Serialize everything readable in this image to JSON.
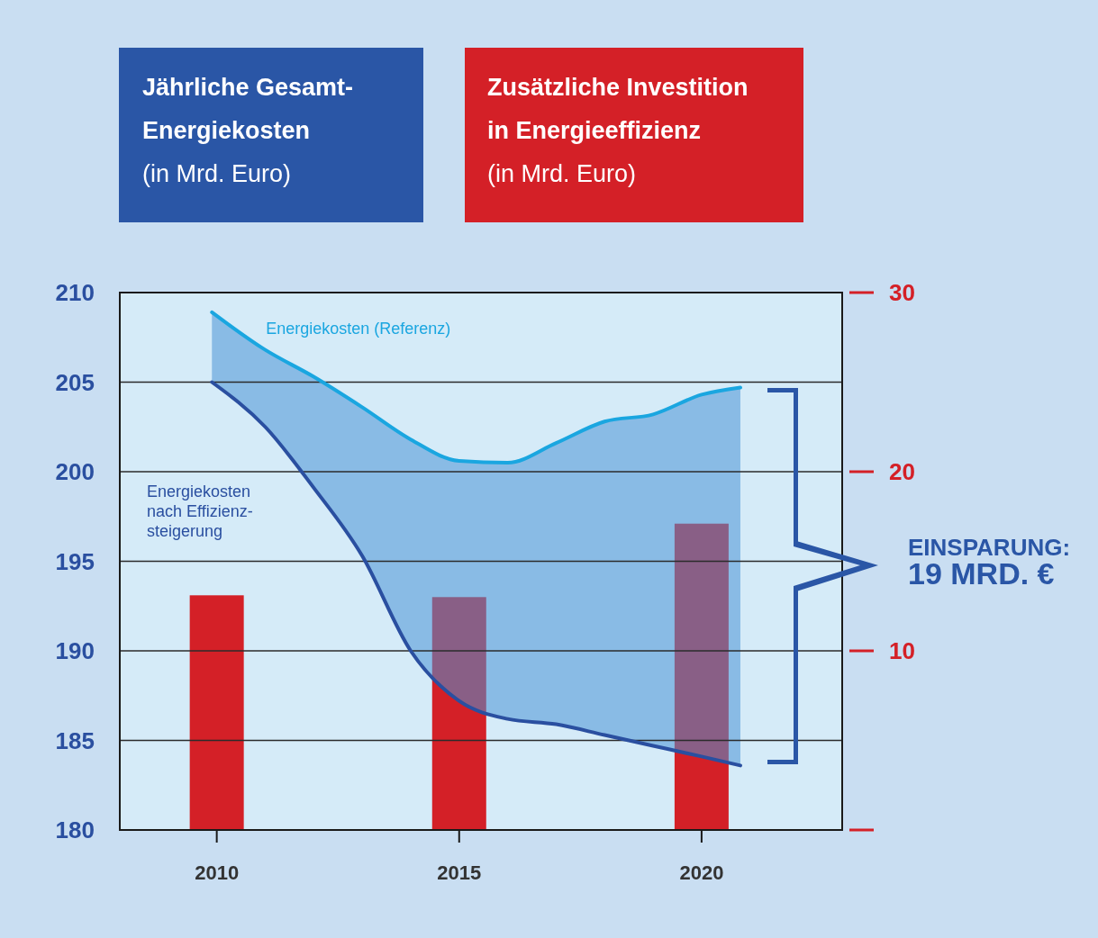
{
  "chart_data": {
    "type": "line",
    "ylabel": "Jährliche Gesamt-Energiekosten (in Mrd. Euro)",
    "y2label": "Zusätzliche Investition in Energieeffizienz (in Mrd. Euro)",
    "xlim": [
      2008,
      2022.9
    ],
    "xticks": [
      2010,
      2015,
      2020
    ],
    "ylim": [
      180,
      210
    ],
    "yticks": [
      180,
      185,
      190,
      195,
      200,
      205,
      210
    ],
    "y2lim": [
      0,
      30
    ],
    "y2ticks": [
      {
        "value": 0,
        "label": null
      },
      10,
      20,
      30
    ],
    "grid": "y",
    "legend": false,
    "series": [
      {
        "type": "bar",
        "axis": "y2",
        "color": "#d42027",
        "x": [
          2010,
          2015,
          2020
        ],
        "values": [
          13.1,
          13.0,
          17.1
        ]
      },
      {
        "name": "Energiekosten (Referenz)",
        "color": "#1aa6e0",
        "x": [
          2009.9,
          2011,
          2012,
          2013,
          2014,
          2015,
          2016,
          2017,
          2018,
          2019,
          2020,
          2020.8
        ],
        "values": [
          208.9,
          206.8,
          205.3,
          203.6,
          201.8,
          200.6,
          200.5,
          201.6,
          202.8,
          203.2,
          204.3,
          204.7
        ],
        "lower": [
          205.0,
          202.5,
          199.1,
          195.3,
          190.0,
          187.2,
          186.2,
          185.9,
          185.3,
          184.7,
          184.1,
          183.6
        ],
        "upper": [
          208.9,
          206.8,
          205.3,
          203.6,
          201.8,
          200.6,
          200.5,
          201.6,
          202.8,
          203.2,
          204.3,
          204.7
        ]
      },
      {
        "name": "Energiekosten nach Effizienz-steigerung",
        "color": "#2a4fa0",
        "x": [
          2009.9,
          2011,
          2012,
          2013,
          2014,
          2015,
          2016,
          2017,
          2018,
          2019,
          2020,
          2020.8
        ],
        "values": [
          205.0,
          202.5,
          199.1,
          195.3,
          190.0,
          187.2,
          186.2,
          185.9,
          185.3,
          184.7,
          184.1,
          183.6
        ]
      }
    ],
    "annotations": [
      "EINSPARUNG: 19 MRD. €"
    ]
  }
}
